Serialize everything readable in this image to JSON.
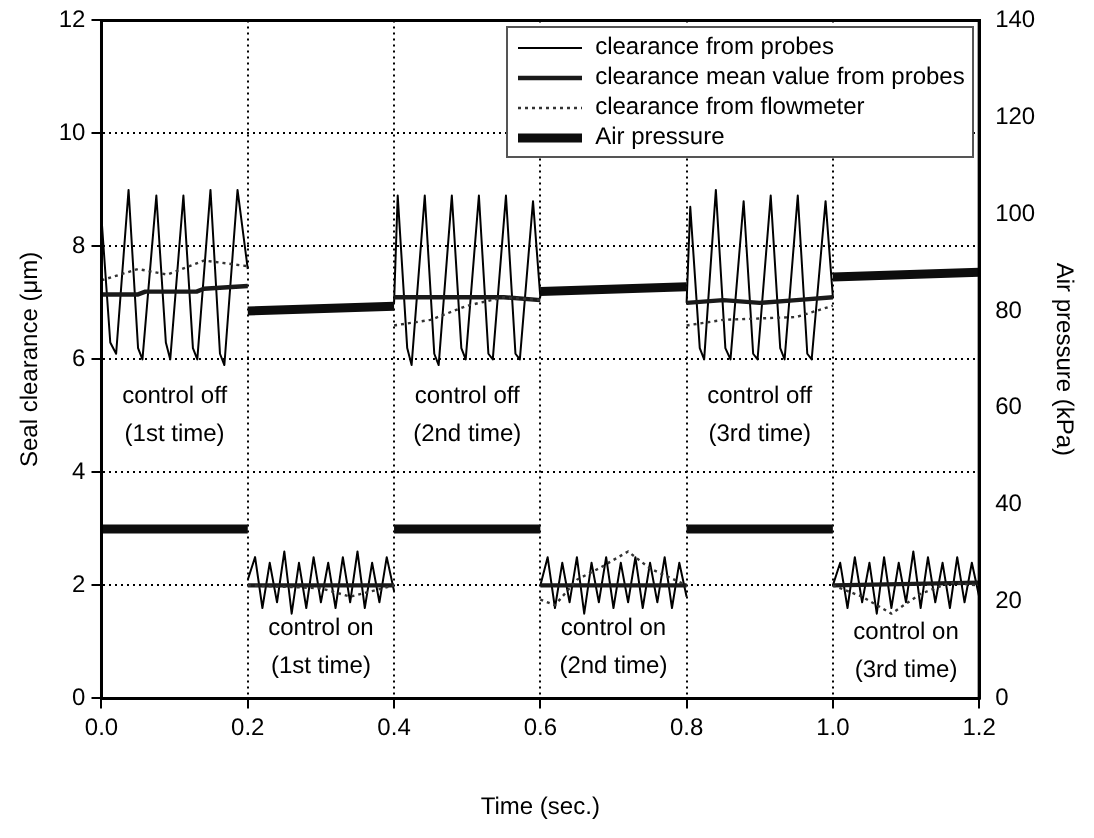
{
  "chart_data": {
    "type": "line",
    "xlabel": "Time (sec.)",
    "ylabel": "Seal clearance (μm)",
    "y2label": "Air pressure (kPa)",
    "xlim": [
      0,
      1.2
    ],
    "xticks": [
      {
        "value": 0,
        "label": "0.0"
      },
      {
        "value": 0.2,
        "label": "0.2"
      },
      {
        "value": 0.4,
        "label": "0.4"
      },
      {
        "value": 0.6,
        "label": "0.6"
      },
      {
        "value": 0.8,
        "label": "0.8"
      },
      {
        "value": 1,
        "label": "1.0"
      },
      {
        "value": 1.2,
        "label": "1.2"
      }
    ],
    "ylim": [
      0,
      12
    ],
    "yticks": [
      0,
      2,
      4,
      6,
      8,
      10,
      12
    ],
    "y2lim": [
      0,
      140
    ],
    "y2ticks": [
      0,
      20,
      40,
      60,
      80,
      100,
      120,
      140
    ],
    "grid": true,
    "legend": "top right",
    "marker": "none",
    "series": [
      {
        "name": "clearance from probes",
        "color": "#000000",
        "line_style": "solid",
        "x": [
          0,
          0.012,
          0.02,
          0.037,
          0.05,
          0.056,
          0.075,
          0.088,
          0.094,
          0.112,
          0.125,
          0.131,
          0.149,
          0.162,
          0.168,
          0.186,
          0.2,
          0.2,
          0.21,
          0.22,
          0.23,
          0.24,
          0.25,
          0.26,
          0.27,
          0.28,
          0.29,
          0.3,
          0.31,
          0.32,
          0.33,
          0.34,
          0.35,
          0.36,
          0.37,
          0.38,
          0.39,
          0.4,
          0.4,
          0.405,
          0.418,
          0.424,
          0.442,
          0.455,
          0.461,
          0.479,
          0.492,
          0.498,
          0.516,
          0.529,
          0.535,
          0.553,
          0.566,
          0.572,
          0.59,
          0.6,
          0.6,
          0.61,
          0.62,
          0.63,
          0.64,
          0.65,
          0.66,
          0.67,
          0.68,
          0.69,
          0.7,
          0.71,
          0.72,
          0.73,
          0.74,
          0.75,
          0.76,
          0.77,
          0.78,
          0.79,
          0.8,
          0.8,
          0.805,
          0.818,
          0.824,
          0.84,
          0.853,
          0.86,
          0.878,
          0.891,
          0.897,
          0.915,
          0.928,
          0.934,
          0.952,
          0.965,
          0.971,
          0.99,
          1,
          1,
          1.01,
          1.02,
          1.03,
          1.04,
          1.05,
          1.06,
          1.07,
          1.08,
          1.09,
          1.1,
          1.11,
          1.12,
          1.13,
          1.14,
          1.15,
          1.16,
          1.17,
          1.18,
          1.19,
          1.2
        ],
        "values": [
          8.5,
          6.3,
          6.1,
          9.0,
          6.2,
          6.0,
          8.9,
          6.3,
          6.0,
          8.9,
          6.2,
          6.0,
          9.0,
          6.1,
          5.9,
          9.0,
          7.6,
          2.1,
          2.5,
          1.6,
          2.4,
          1.7,
          2.6,
          1.5,
          2.4,
          1.6,
          2.5,
          1.7,
          2.4,
          1.6,
          2.5,
          1.7,
          2.6,
          1.6,
          2.4,
          1.7,
          2.5,
          1.9,
          7.0,
          8.9,
          6.2,
          5.9,
          8.9,
          6.1,
          5.9,
          8.9,
          6.2,
          6.0,
          8.9,
          6.1,
          6.0,
          8.9,
          6.1,
          6.0,
          8.8,
          7.1,
          2.0,
          2.5,
          1.6,
          2.4,
          1.7,
          2.5,
          1.5,
          2.4,
          1.7,
          2.5,
          1.6,
          2.4,
          1.7,
          2.5,
          1.6,
          2.4,
          1.7,
          2.5,
          1.6,
          2.4,
          1.8,
          7.0,
          8.7,
          6.2,
          6.0,
          9.0,
          6.2,
          6.0,
          8.8,
          6.1,
          6.0,
          8.9,
          6.2,
          6.0,
          8.9,
          6.1,
          6.0,
          8.8,
          7.1,
          2.0,
          2.4,
          1.6,
          2.5,
          1.7,
          2.4,
          1.5,
          2.5,
          1.6,
          2.4,
          1.7,
          2.6,
          1.6,
          2.5,
          1.7,
          2.4,
          1.6,
          2.5,
          1.7,
          2.4,
          1.8
        ]
      },
      {
        "name": "clearance mean value from probes",
        "color": "#1a1a1a",
        "line_style": "solid",
        "x": [
          0,
          0.05,
          0.06,
          0.13,
          0.14,
          0.2,
          0.2,
          0.4,
          0.4,
          0.5,
          0.55,
          0.6,
          0.6,
          0.8,
          0.8,
          0.85,
          0.9,
          0.95,
          1,
          1,
          1.2
        ],
        "values": [
          7.15,
          7.15,
          7.2,
          7.2,
          7.25,
          7.3,
          2.0,
          2.0,
          7.1,
          7.1,
          7.1,
          7.05,
          2.0,
          2.0,
          7.0,
          7.05,
          7.0,
          7.05,
          7.1,
          2.0,
          2.05
        ]
      },
      {
        "name": "clearance from flowmeter",
        "color": "#333333",
        "line_style": "dotted",
        "x": [
          0,
          0.05,
          0.09,
          0.14,
          0.2,
          0.2,
          0.3,
          0.34,
          0.37,
          0.4,
          0.4,
          0.45,
          0.5,
          0.55,
          0.6,
          0.6,
          0.62,
          0.65,
          0.68,
          0.72,
          0.75,
          0.8,
          0.8,
          0.85,
          0.95,
          1,
          1,
          1.04,
          1.08,
          1.12,
          1.16,
          1.2
        ],
        "values": [
          7.4,
          7.6,
          7.5,
          7.75,
          7.65,
          2.0,
          1.95,
          1.8,
          1.9,
          2.0,
          6.6,
          6.7,
          6.95,
          7.1,
          7.05,
          1.75,
          1.65,
          2.1,
          2.3,
          2.6,
          2.3,
          2.0,
          6.6,
          6.7,
          6.75,
          6.95,
          2.0,
          1.8,
          1.5,
          1.85,
          2.05,
          2.0
        ]
      },
      {
        "name": "Air pressure",
        "color": "#0d0d0d",
        "line_style": "solid",
        "axis": "y2",
        "x": [
          0,
          0.2,
          0.2,
          0.4,
          0.4,
          0.6,
          0.6,
          0.8,
          0.8,
          1,
          1,
          1.2
        ],
        "values": [
          35,
          35,
          80,
          81,
          35,
          35,
          84,
          85,
          35,
          35,
          87,
          88
        ]
      }
    ],
    "annotations": [
      "control off\n(1st time)",
      "control off\n(2nd time)",
      "control off\n(3rd time)",
      "control on\n(1st time)",
      "control on\n(2nd time)",
      "control on\n(3rd time)"
    ]
  }
}
